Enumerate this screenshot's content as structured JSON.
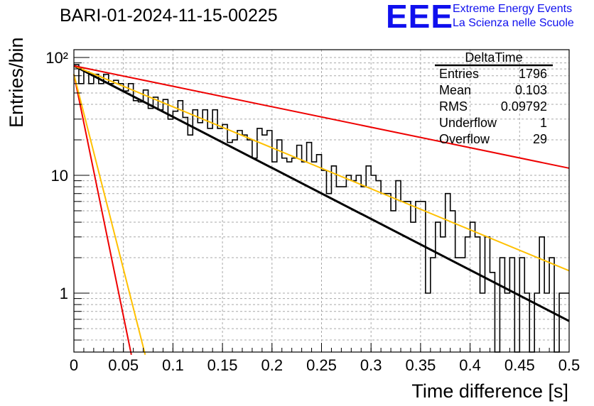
{
  "header": {
    "title": "BARI-01-2024-11-15-00225",
    "logo_text": "EEE",
    "logo_line1": "Extreme Energy Events",
    "logo_line2": "La Scienza nelle Scuole",
    "logo_color": "#1010ee"
  },
  "stats_box": {
    "name": "DeltaTime",
    "rows": [
      {
        "label": "Entries",
        "value": "1796"
      },
      {
        "label": "Mean",
        "value": "0.103"
      },
      {
        "label": "RMS",
        "value": "0.09792"
      },
      {
        "label": "Underflow",
        "value": "1"
      },
      {
        "label": "Overflow",
        "value": "29"
      }
    ]
  },
  "chart_data": {
    "type": "histogram",
    "title": "BARI-01-2024-11-15-00225",
    "xlabel": "Time difference [s]",
    "ylabel": "Entries/bin",
    "xlim": [
      0,
      0.5
    ],
    "ylim": [
      0.3,
      140
    ],
    "yscale": "log",
    "grid": true,
    "x_ticks": [
      0,
      0.05,
      0.1,
      0.15,
      0.2,
      0.25,
      0.3,
      0.35,
      0.4,
      0.45,
      0.5
    ],
    "x_tick_labels": [
      "0",
      "0.05",
      "0.1",
      "0.15",
      "0.2",
      "0.25",
      "0.3",
      "0.35",
      "0.4",
      "0.45",
      "0.5"
    ],
    "y_tick_labels": [
      "1",
      "10",
      "10²"
    ],
    "bin_width": 0.005,
    "histogram": {
      "color": "#000000",
      "values": [
        87,
        60,
        76,
        60,
        72,
        60,
        72,
        60,
        64,
        60,
        52,
        60,
        43,
        42,
        53,
        37,
        46,
        36,
        44,
        30,
        35,
        43,
        31,
        22,
        36,
        28,
        36,
        25,
        36,
        25,
        27,
        19,
        20,
        24,
        22,
        20,
        14,
        25,
        22,
        24,
        13,
        20,
        14,
        13,
        14,
        18,
        13,
        19,
        13,
        15,
        11,
        7,
        12,
        8,
        8,
        10,
        9,
        10,
        8,
        12,
        10,
        9,
        7,
        7,
        5,
        9,
        6,
        6,
        4,
        6,
        6,
        1,
        2,
        4,
        3,
        7,
        5,
        2,
        2,
        3,
        4,
        3,
        1,
        3,
        1.5,
        0.3,
        2,
        1,
        2,
        0.3,
        2,
        1,
        0.3,
        1,
        3,
        1,
        2,
        0.3,
        1,
        1
      ]
    },
    "series": [
      {
        "color": "#000000",
        "kind": "fit",
        "x": [
          0,
          0.5
        ],
        "y": [
          85,
          0.58
        ]
      },
      {
        "color": "#ffc000",
        "kind": "curve",
        "x": [
          0,
          0.5
        ],
        "y": [
          85,
          1.55
        ]
      },
      {
        "color": "#ee0000",
        "kind": "curve",
        "x": [
          0,
          0.5
        ],
        "y": [
          85,
          11.5
        ]
      },
      {
        "color": "#ee0000",
        "kind": "curve",
        "x": [
          0,
          0.058
        ],
        "y": [
          72,
          0.3
        ]
      },
      {
        "color": "#ffc000",
        "kind": "curve",
        "x": [
          0,
          0.072
        ],
        "y": [
          72,
          0.3
        ]
      }
    ]
  }
}
